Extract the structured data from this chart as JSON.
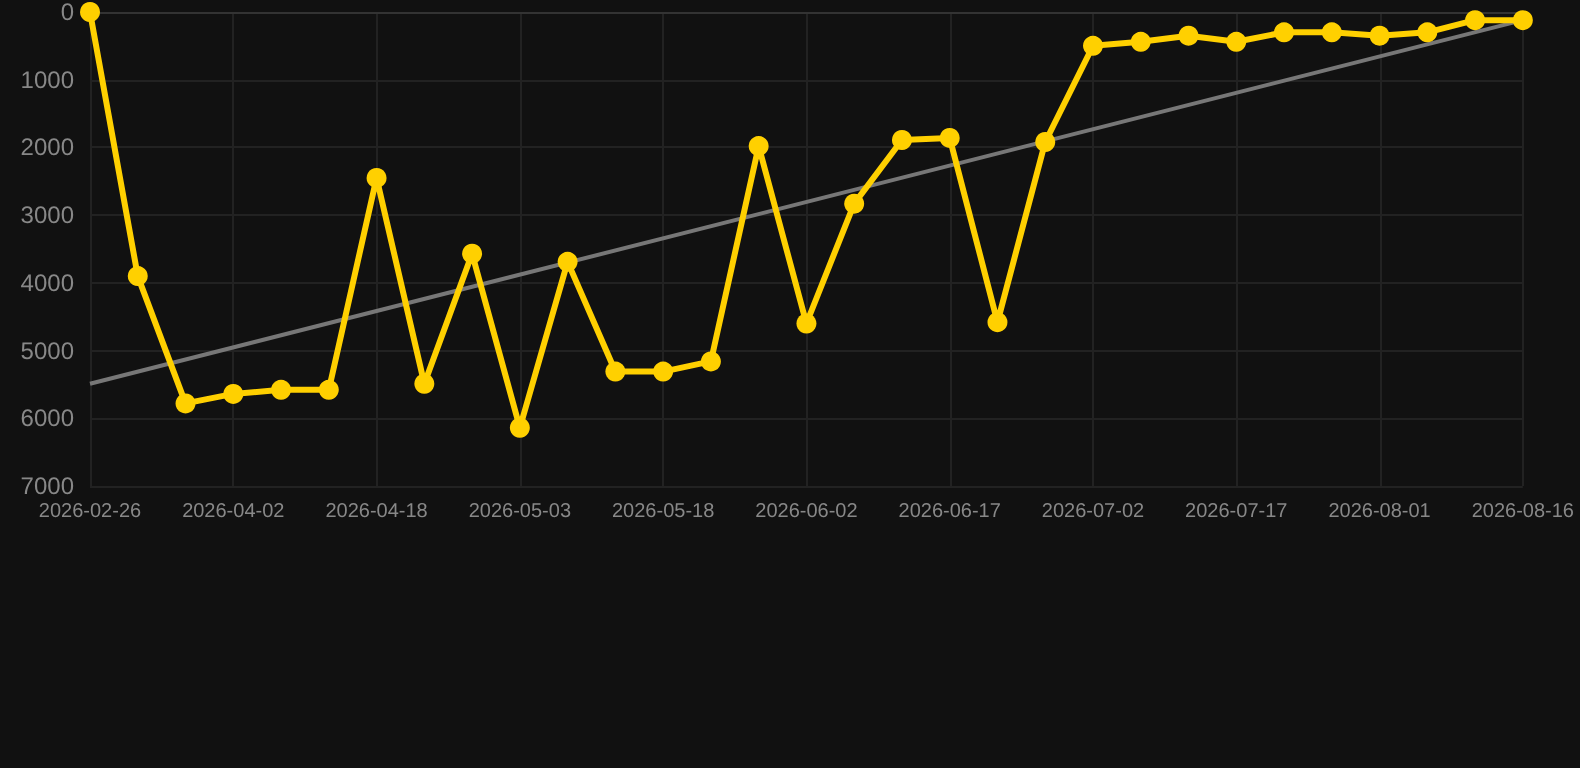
{
  "chart_data": {
    "type": "line",
    "categories": [
      "2026-02-26",
      null,
      null,
      "2026-04-02",
      null,
      null,
      "2026-04-18",
      null,
      null,
      "2026-05-03",
      null,
      null,
      "2026-05-18",
      null,
      null,
      "2026-06-02",
      null,
      null,
      "2026-06-17",
      null,
      null,
      "2026-07-02",
      null,
      null,
      "2026-07-17",
      null,
      null,
      "2026-08-01",
      null,
      null,
      "2026-08-16"
    ],
    "series": [
      {
        "color": "#ffd000",
        "marker": "circle",
        "values": [
          0,
          3900,
          5780,
          5640,
          5580,
          5580,
          2450,
          5490,
          3570,
          6140,
          3690,
          5310,
          5310,
          5160,
          1980,
          4600,
          2830,
          1890,
          1860,
          4580,
          1920,
          500,
          440,
          350,
          440,
          300,
          300,
          350,
          300,
          120,
          120
        ]
      },
      {
        "color": "#777777",
        "marker": "none",
        "values": [
          5490,
          null,
          null,
          null,
          null,
          null,
          null,
          null,
          null,
          null,
          null,
          null,
          null,
          null,
          null,
          null,
          null,
          null,
          null,
          null,
          null,
          null,
          null,
          null,
          null,
          null,
          null,
          null,
          null,
          null,
          120
        ]
      }
    ],
    "ylim": [
      7000,
      0
    ],
    "yticks": [
      0,
      1000,
      2000,
      3000,
      4000,
      5000,
      6000,
      7000
    ],
    "grid": true
  }
}
